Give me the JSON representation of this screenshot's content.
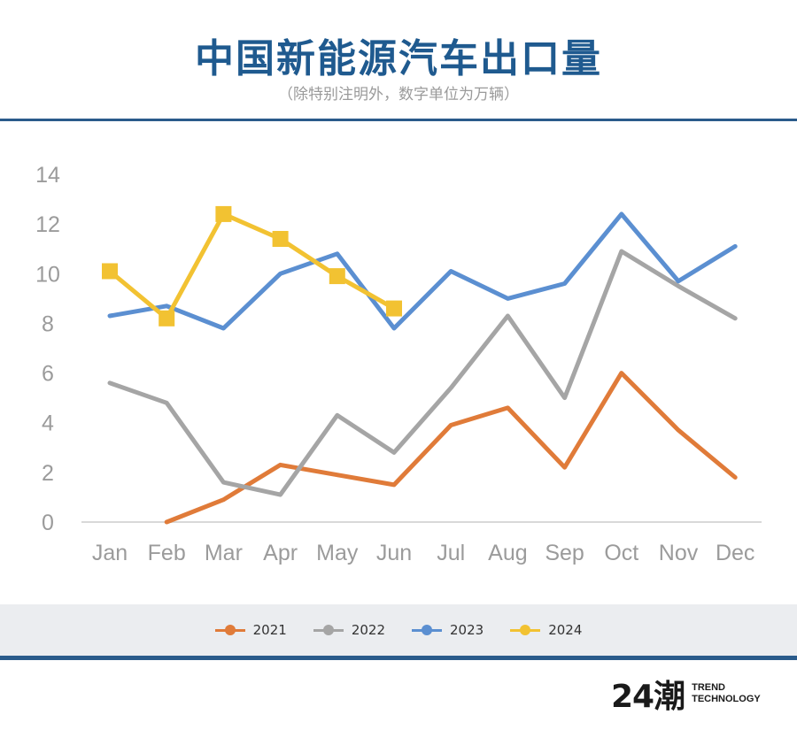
{
  "header": {
    "title": "中国新能源汽车出口量",
    "subtitle": "（除特别注明外，数字单位为万辆）"
  },
  "logo": {
    "mark": "24潮",
    "line1": "TREND",
    "line2": "TECHNOLOGY"
  },
  "chart_data": {
    "type": "line",
    "categories": [
      "Jan",
      "Feb",
      "Mar",
      "Apr",
      "May",
      "Jun",
      "Jul",
      "Aug",
      "Sep",
      "Oct",
      "Nov",
      "Dec"
    ],
    "ylim": [
      0,
      14
    ],
    "yticks": [
      0,
      2,
      4,
      6,
      8,
      10,
      12,
      14
    ],
    "grid": false,
    "legend": "bottom",
    "series": [
      {
        "name": "2021",
        "color": "#e07b39",
        "marker": "none",
        "values": [
          null,
          0,
          0.9,
          2.3,
          1.9,
          1.5,
          3.9,
          4.6,
          2.2,
          6.0,
          3.7,
          1.8
        ]
      },
      {
        "name": "2022",
        "color": "#a5a5a5",
        "marker": "none",
        "values": [
          5.6,
          4.8,
          1.6,
          1.1,
          4.3,
          2.8,
          5.4,
          8.3,
          5.0,
          10.9,
          9.5,
          8.2
        ]
      },
      {
        "name": "2023",
        "color": "#5b8fd1",
        "marker": "none",
        "values": [
          8.3,
          8.7,
          7.8,
          10.0,
          10.8,
          7.8,
          10.1,
          9.0,
          9.6,
          12.4,
          9.7,
          11.1
        ]
      },
      {
        "name": "2024",
        "color": "#f2c232",
        "marker": "square",
        "values": [
          10.1,
          8.2,
          12.4,
          11.4,
          9.9,
          8.6,
          null,
          null,
          null,
          null,
          null,
          null
        ]
      }
    ]
  }
}
